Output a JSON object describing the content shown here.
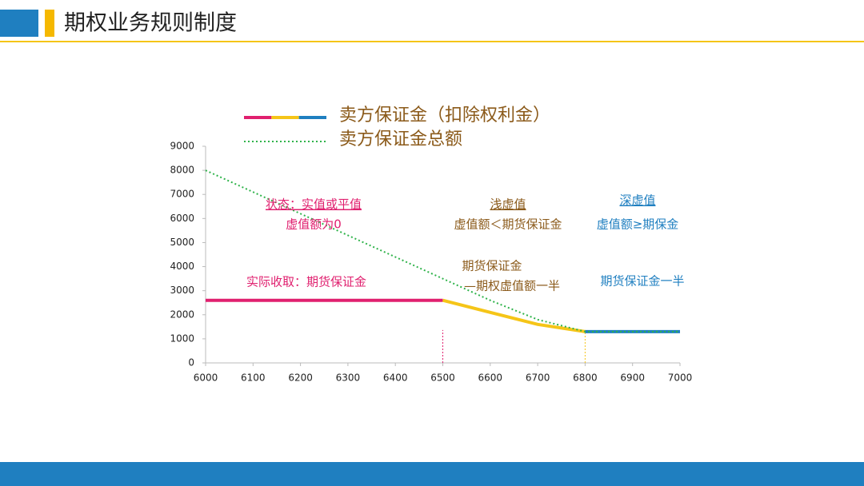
{
  "header": {
    "title": "期权业务规则制度"
  },
  "chart_data": {
    "type": "line",
    "x": [
      6000,
      6500,
      6600,
      6700,
      6800,
      7000
    ],
    "series": [
      {
        "name": "卖方保证金（扣除权利金）",
        "colors": [
          "#e0206f",
          "#f5c518",
          "#f5c518",
          "#f5c518",
          "#1f7fc0"
        ],
        "style": "solid",
        "values": [
          2600,
          2600,
          2100,
          1600,
          1300,
          1300
        ]
      },
      {
        "name": "卖方保证金总额",
        "color": "#2fb34a",
        "style": "dotted",
        "values": [
          8000,
          3500,
          2600,
          1800,
          1300,
          1300
        ]
      }
    ],
    "vlines": [
      {
        "x": 6500,
        "color": "#e0206f"
      },
      {
        "x": 6800,
        "color": "#f5c518"
      }
    ],
    "xlim": [
      6000,
      7000
    ],
    "xticks": [
      6000,
      6100,
      6200,
      6300,
      6400,
      6500,
      6600,
      6700,
      6800,
      6900,
      7000
    ],
    "ylim": [
      0,
      9000
    ],
    "yticks": [
      0,
      1000,
      2000,
      3000,
      4000,
      5000,
      6000,
      7000,
      8000,
      9000
    ],
    "annotations": [
      {
        "text": "状态：实值或平值",
        "color": "#e0206f",
        "underline": true
      },
      {
        "text": "虚值额为0",
        "color": "#e0206f",
        "underline": false
      },
      {
        "text": "实际收取：期货保证金",
        "color": "#e0206f",
        "underline": false
      },
      {
        "text": "浅虚值",
        "color": "#8b5a1a",
        "underline": true
      },
      {
        "text": "虚值额＜期货保证金",
        "color": "#8b5a1a",
        "underline": false
      },
      {
        "text": "期货保证金",
        "color": "#8b5a1a",
        "underline": false
      },
      {
        "text": "—期权虚值额一半",
        "color": "#8b5a1a",
        "underline": false
      },
      {
        "text": "深虚值",
        "color": "#1f7fc0",
        "underline": true
      },
      {
        "text": "虚值额≥期保金",
        "color": "#1f7fc0",
        "underline": false
      },
      {
        "text": "期货保证金一半",
        "color": "#1f7fc0",
        "underline": false
      }
    ]
  }
}
